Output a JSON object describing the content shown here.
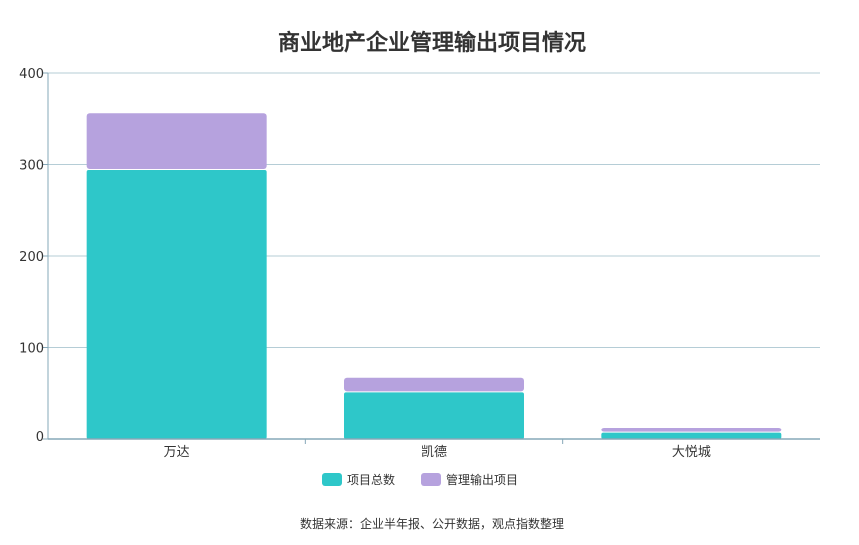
{
  "chart_data": {
    "type": "bar",
    "stacked": true,
    "title": "商业地产企业管理输出项目情况",
    "categories": [
      "万达",
      "凯德",
      "大悦城"
    ],
    "series": [
      {
        "name": "项目总数",
        "values": [
          294,
          51,
          7
        ],
        "color": "#2ec7c9"
      },
      {
        "name": "管理输出项目",
        "values": [
          62,
          16,
          5
        ],
        "color": "#b6a2de"
      }
    ],
    "y_ticks": [
      "0",
      "100",
      "200",
      "300",
      "400"
    ],
    "ylim": [
      0,
      400
    ],
    "grid": true,
    "legend_position": "bottom-center"
  },
  "source": "数据来源：企业半年报、公开数据，观点指数整理",
  "colors": {
    "axis": "#86a8b8",
    "grid": "#b5cdd6"
  }
}
